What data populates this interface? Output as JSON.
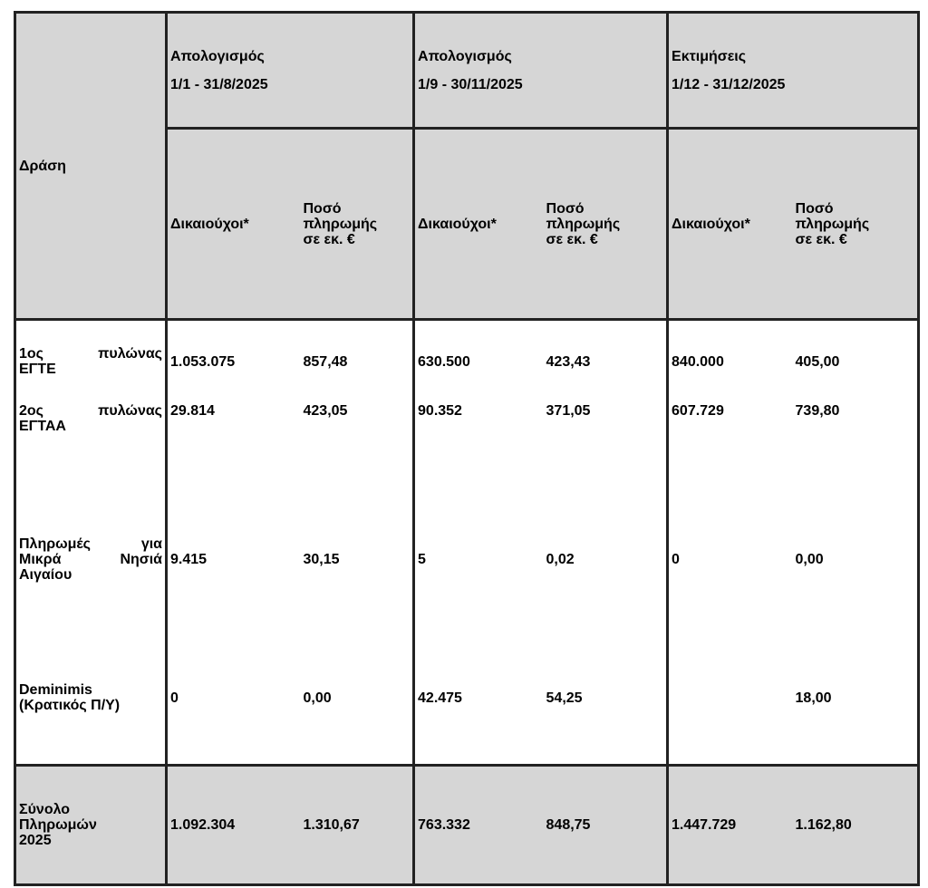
{
  "header": {
    "action_label": "Δράση",
    "periods": [
      {
        "title": "Απολογισμός",
        "range": "1/1 - 31/8/2025"
      },
      {
        "title": "Απολογισμός",
        "range": "1/9 - 30/11/2025"
      },
      {
        "title": "Εκτιμήσεις",
        "range": "1/12 - 31/12/2025"
      }
    ],
    "beneficiaries_label": "Δικαιούχοι*",
    "amount_label_lines": [
      "Ποσό",
      "πληρωμής",
      "σε εκ. €"
    ]
  },
  "rows": [
    {
      "action_lines": [
        "1ος πυλώνας",
        "ΕΓΤΕ"
      ],
      "values": [
        "1.053.075",
        "857,48",
        "630.500",
        "423,43",
        "840.000",
        "405,00"
      ]
    },
    {
      "action_lines": [
        "2ος πυλώνας",
        "ΕΓΤΑΑ"
      ],
      "values": [
        "29.814",
        "423,05",
        "90.352",
        "371,05",
        "607.729",
        "739,80"
      ]
    },
    {
      "action_lines": [
        "Πληρωμές για",
        "Μικρά Νησιά",
        "Αιγαίου"
      ],
      "values": [
        "9.415",
        "30,15",
        "5",
        "0,02",
        "0",
        "0,00"
      ]
    },
    {
      "action_lines": [
        "Deminimis",
        "(Κρατικός Π/Υ)"
      ],
      "values": [
        "0",
        "0,00",
        "42.475",
        "54,25",
        "",
        "18,00"
      ]
    }
  ],
  "total": {
    "action_lines": [
      "Σύνολο",
      "Πληρωμών",
      "2025"
    ],
    "values": [
      "1.092.304",
      "1.310,67",
      "763.332",
      "848,75",
      "1.447.729",
      "1.162,80"
    ]
  }
}
